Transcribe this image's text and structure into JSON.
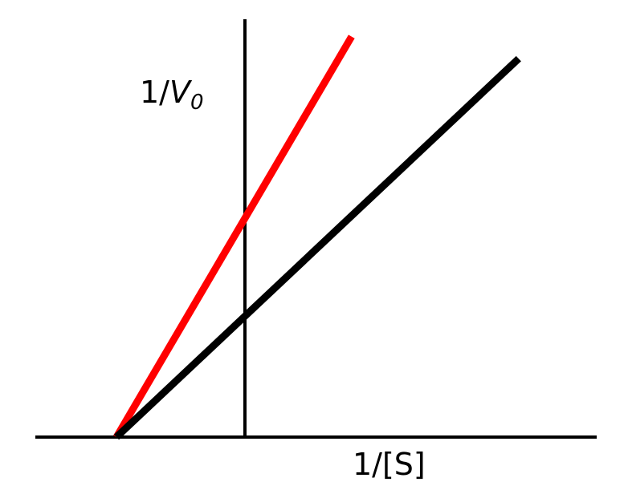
{
  "chart_data": {
    "type": "line",
    "title": "",
    "xlabel": "1/[S]",
    "ylabel": {
      "prefix": "1/",
      "variable": "V",
      "subscript": "0"
    },
    "xlim": [
      -1.0,
      2.13
    ],
    "ylim": [
      0,
      4.79
    ],
    "series": [
      {
        "color": "#ff0000",
        "x": [
          -1.0,
          0.83
        ],
        "y": [
          0,
          4.54
        ]
      },
      {
        "color": "#000000",
        "x": [
          -1.0,
          2.13
        ],
        "y": [
          0,
          4.29
        ]
      }
    ]
  }
}
